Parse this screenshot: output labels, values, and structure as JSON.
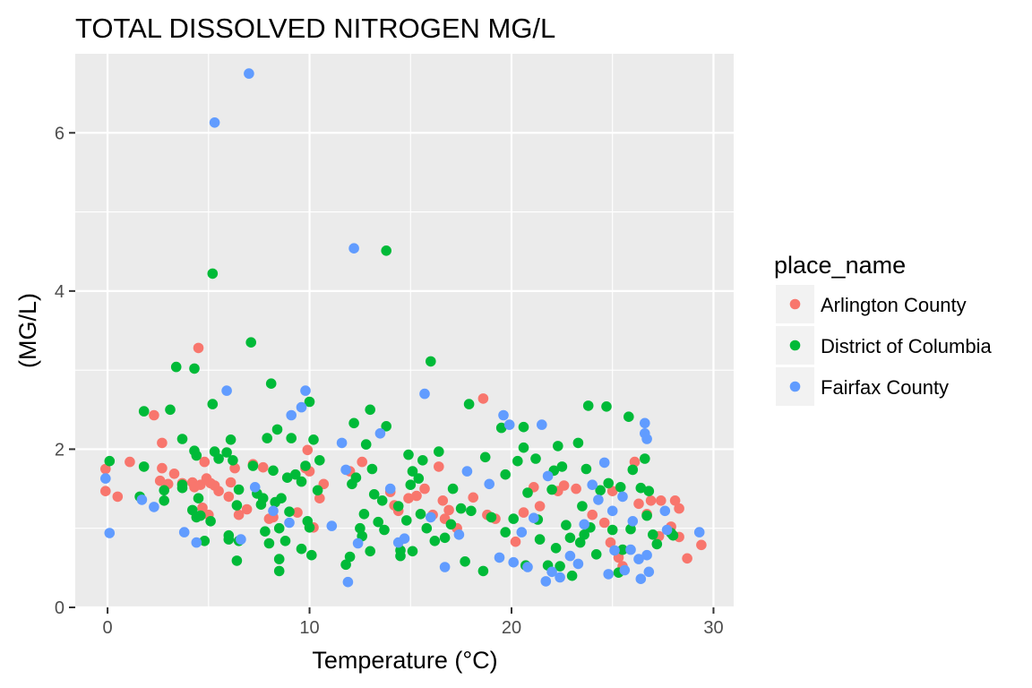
{
  "chart_data": {
    "type": "scatter",
    "title": "TOTAL DISSOLVED NITROGEN MG/L",
    "xlabel": "Temperature (°C)",
    "ylabel": "(MG/L)",
    "xlim": [
      -1.6,
      31.0
    ],
    "ylim": [
      0,
      7.0
    ],
    "x_ticks": [
      0,
      10,
      20,
      30
    ],
    "x_tick_labels": [
      "0",
      "10",
      "20",
      "30"
    ],
    "y_ticks": [
      0,
      2,
      4,
      6
    ],
    "y_tick_labels": [
      "0",
      "2",
      "4",
      "6"
    ],
    "grid": true,
    "legend": {
      "title": "place_name",
      "position": "right",
      "entries": [
        "Arlington County",
        "District of Columbia",
        "Fairfax County"
      ]
    },
    "series": [
      {
        "name": "Arlington County",
        "color": "#F8766D",
        "points": [
          [
            -0.1,
            1.75
          ],
          [
            -0.1,
            1.47
          ],
          [
            0.5,
            1.4
          ],
          [
            1.1,
            1.84
          ],
          [
            2.3,
            2.43
          ],
          [
            2.6,
            1.6
          ],
          [
            2.7,
            2.08
          ],
          [
            2.7,
            1.76
          ],
          [
            3.0,
            1.56
          ],
          [
            3.3,
            1.69
          ],
          [
            3.7,
            1.57
          ],
          [
            4.2,
            1.58
          ],
          [
            4.3,
            1.52
          ],
          [
            4.5,
            3.28
          ],
          [
            4.6,
            1.55
          ],
          [
            4.7,
            1.26
          ],
          [
            4.8,
            1.84
          ],
          [
            4.9,
            1.63
          ],
          [
            5.0,
            1.17
          ],
          [
            5.1,
            1.57
          ],
          [
            5.3,
            1.54
          ],
          [
            5.5,
            1.47
          ],
          [
            6.0,
            1.4
          ],
          [
            6.1,
            1.58
          ],
          [
            6.3,
            1.76
          ],
          [
            6.5,
            1.17
          ],
          [
            6.9,
            1.24
          ],
          [
            7.2,
            1.81
          ],
          [
            7.7,
            1.77
          ],
          [
            8.0,
            1.12
          ],
          [
            8.2,
            1.14
          ],
          [
            9.4,
            1.2
          ],
          [
            9.8,
            1.76
          ],
          [
            9.9,
            1.99
          ],
          [
            10.0,
            1.72
          ],
          [
            10.2,
            1.01
          ],
          [
            10.5,
            1.38
          ],
          [
            10.7,
            1.56
          ],
          [
            12.0,
            1.72
          ],
          [
            12.6,
            1.84
          ],
          [
            14.0,
            1.46
          ],
          [
            14.2,
            1.29
          ],
          [
            14.4,
            1.22
          ],
          [
            14.9,
            1.38
          ],
          [
            15.3,
            1.41
          ],
          [
            15.7,
            1.5
          ],
          [
            16.1,
            1.17
          ],
          [
            16.4,
            1.78
          ],
          [
            16.6,
            1.35
          ],
          [
            16.7,
            1.12
          ],
          [
            16.9,
            1.23
          ],
          [
            17.3,
            1.0
          ],
          [
            18.1,
            1.39
          ],
          [
            18.6,
            2.64
          ],
          [
            18.8,
            1.17
          ],
          [
            19.2,
            1.12
          ],
          [
            20.2,
            0.83
          ],
          [
            20.6,
            1.2
          ],
          [
            21.1,
            1.52
          ],
          [
            21.4,
            1.28
          ],
          [
            22.3,
            1.47
          ],
          [
            22.6,
            1.54
          ],
          [
            23.2,
            1.5
          ],
          [
            24.0,
            1.17
          ],
          [
            24.6,
            1.07
          ],
          [
            24.9,
            0.82
          ],
          [
            25.0,
            1.47
          ],
          [
            25.3,
            0.63
          ],
          [
            25.5,
            0.52
          ],
          [
            26.1,
            1.84
          ],
          [
            26.3,
            1.31
          ],
          [
            26.7,
            1.18
          ],
          [
            26.9,
            1.35
          ],
          [
            27.3,
            0.9
          ],
          [
            27.4,
            1.35
          ],
          [
            27.9,
            1.02
          ],
          [
            28.1,
            1.35
          ],
          [
            28.3,
            0.89
          ],
          [
            28.3,
            1.25
          ],
          [
            28.7,
            0.62
          ],
          [
            29.4,
            0.79
          ]
        ]
      },
      {
        "name": "District of Columbia",
        "color": "#00BA38",
        "points": [
          [
            0.1,
            1.85
          ],
          [
            1.6,
            1.4
          ],
          [
            1.8,
            2.48
          ],
          [
            1.8,
            1.78
          ],
          [
            2.8,
            1.48
          ],
          [
            2.8,
            1.35
          ],
          [
            3.1,
            2.5
          ],
          [
            3.4,
            3.04
          ],
          [
            3.7,
            1.55
          ],
          [
            3.7,
            2.13
          ],
          [
            3.7,
            1.51
          ],
          [
            4.2,
            1.23
          ],
          [
            4.3,
            3.02
          ],
          [
            4.3,
            1.98
          ],
          [
            4.4,
            1.14
          ],
          [
            4.4,
            1.92
          ],
          [
            4.5,
            1.38
          ],
          [
            4.6,
            1.16
          ],
          [
            4.8,
            0.84
          ],
          [
            5.1,
            1.09
          ],
          [
            5.2,
            4.22
          ],
          [
            5.2,
            2.57
          ],
          [
            5.3,
            1.97
          ],
          [
            5.5,
            1.88
          ],
          [
            5.9,
            1.96
          ],
          [
            6.0,
            0.91
          ],
          [
            6.0,
            0.86
          ],
          [
            6.1,
            2.12
          ],
          [
            6.2,
            1.86
          ],
          [
            6.4,
            0.59
          ],
          [
            6.4,
            1.29
          ],
          [
            6.5,
            1.49
          ],
          [
            6.5,
            0.84
          ],
          [
            7.1,
            3.35
          ],
          [
            7.2,
            1.79
          ],
          [
            7.4,
            1.44
          ],
          [
            7.6,
            1.3
          ],
          [
            7.7,
            1.38
          ],
          [
            7.8,
            0.96
          ],
          [
            7.9,
            2.14
          ],
          [
            8.0,
            0.81
          ],
          [
            8.1,
            2.83
          ],
          [
            8.2,
            1.73
          ],
          [
            8.3,
            1.33
          ],
          [
            8.4,
            2.25
          ],
          [
            8.5,
            0.61
          ],
          [
            8.5,
            1.0
          ],
          [
            8.5,
            0.46
          ],
          [
            8.6,
            1.38
          ],
          [
            8.8,
            0.84
          ],
          [
            8.9,
            1.64
          ],
          [
            9.0,
            1.21
          ],
          [
            9.1,
            2.14
          ],
          [
            9.3,
            1.68
          ],
          [
            9.6,
            1.59
          ],
          [
            9.6,
            0.74
          ],
          [
            9.8,
            1.79
          ],
          [
            9.9,
            1.09
          ],
          [
            10.0,
            1.01
          ],
          [
            10.0,
            2.6
          ],
          [
            10.1,
            0.66
          ],
          [
            10.2,
            2.12
          ],
          [
            10.4,
            1.48
          ],
          [
            10.5,
            1.86
          ],
          [
            11.8,
            0.54
          ],
          [
            12.0,
            0.64
          ],
          [
            12.1,
            1.56
          ],
          [
            12.2,
            2.33
          ],
          [
            12.3,
            1.64
          ],
          [
            12.5,
            1.0
          ],
          [
            12.6,
            0.9
          ],
          [
            12.7,
            1.18
          ],
          [
            12.8,
            2.06
          ],
          [
            13.0,
            2.5
          ],
          [
            13.0,
            0.71
          ],
          [
            13.1,
            1.75
          ],
          [
            13.2,
            1.43
          ],
          [
            13.4,
            1.08
          ],
          [
            13.6,
            1.35
          ],
          [
            13.7,
            0.98
          ],
          [
            13.8,
            2.29
          ],
          [
            13.8,
            4.51
          ],
          [
            14.4,
            1.28
          ],
          [
            14.5,
            0.72
          ],
          [
            14.5,
            0.65
          ],
          [
            14.8,
            1.1
          ],
          [
            14.9,
            1.93
          ],
          [
            15.0,
            1.55
          ],
          [
            15.1,
            1.72
          ],
          [
            15.1,
            0.71
          ],
          [
            15.4,
            1.63
          ],
          [
            15.5,
            1.18
          ],
          [
            15.6,
            1.86
          ],
          [
            15.8,
            1.0
          ],
          [
            16.0,
            3.11
          ],
          [
            16.2,
            0.84
          ],
          [
            16.4,
            1.97
          ],
          [
            16.7,
            0.88
          ],
          [
            17.0,
            1.05
          ],
          [
            17.1,
            1.5
          ],
          [
            17.5,
            1.25
          ],
          [
            17.7,
            0.58
          ],
          [
            17.9,
            2.57
          ],
          [
            18.0,
            1.22
          ],
          [
            18.6,
            0.46
          ],
          [
            18.7,
            1.9
          ],
          [
            19.0,
            1.14
          ],
          [
            19.5,
            2.27
          ],
          [
            19.7,
            0.95
          ],
          [
            19.7,
            1.68
          ],
          [
            20.1,
            1.12
          ],
          [
            20.3,
            1.85
          ],
          [
            20.6,
            2.28
          ],
          [
            20.6,
            2.02
          ],
          [
            20.7,
            0.53
          ],
          [
            20.8,
            1.45
          ],
          [
            21.2,
            1.88
          ],
          [
            21.3,
            1.11
          ],
          [
            21.4,
            0.86
          ],
          [
            21.8,
            0.53
          ],
          [
            22.0,
            1.49
          ],
          [
            22.1,
            1.73
          ],
          [
            22.2,
            0.75
          ],
          [
            22.3,
            2.04
          ],
          [
            22.4,
            0.52
          ],
          [
            22.5,
            1.78
          ],
          [
            22.7,
            1.04
          ],
          [
            22.9,
            0.88
          ],
          [
            23.0,
            0.4
          ],
          [
            23.3,
            2.08
          ],
          [
            23.4,
            0.82
          ],
          [
            23.5,
            1.28
          ],
          [
            23.6,
            0.92
          ],
          [
            23.7,
            1.75
          ],
          [
            23.8,
            2.55
          ],
          [
            23.9,
            1.01
          ],
          [
            24.2,
            0.67
          ],
          [
            24.4,
            1.48
          ],
          [
            24.7,
            2.54
          ],
          [
            24.8,
            1.57
          ],
          [
            25.0,
            0.98
          ],
          [
            25.3,
            0.44
          ],
          [
            25.4,
            1.52
          ],
          [
            25.5,
            0.73
          ],
          [
            25.8,
            2.41
          ],
          [
            25.9,
            0.99
          ],
          [
            26.0,
            1.74
          ],
          [
            26.4,
            1.51
          ],
          [
            26.6,
            1.88
          ],
          [
            26.7,
            1.16
          ],
          [
            26.8,
            1.47
          ],
          [
            27.0,
            0.92
          ],
          [
            27.2,
            0.8
          ],
          [
            27.9,
            0.94
          ],
          [
            28.0,
            0.91
          ]
        ]
      },
      {
        "name": "Fairfax County",
        "color": "#619CFF",
        "points": [
          [
            -0.1,
            1.63
          ],
          [
            0.1,
            0.94
          ],
          [
            1.7,
            1.36
          ],
          [
            2.3,
            1.27
          ],
          [
            3.8,
            0.95
          ],
          [
            4.4,
            0.82
          ],
          [
            5.3,
            6.13
          ],
          [
            5.9,
            2.74
          ],
          [
            6.6,
            0.86
          ],
          [
            7.0,
            6.75
          ],
          [
            7.3,
            1.52
          ],
          [
            8.2,
            1.22
          ],
          [
            9.0,
            1.07
          ],
          [
            9.1,
            2.43
          ],
          [
            9.6,
            2.53
          ],
          [
            9.8,
            2.74
          ],
          [
            11.1,
            1.03
          ],
          [
            11.6,
            2.08
          ],
          [
            11.8,
            1.74
          ],
          [
            11.9,
            0.32
          ],
          [
            12.2,
            4.54
          ],
          [
            12.4,
            0.81
          ],
          [
            13.5,
            2.2
          ],
          [
            14.0,
            1.5
          ],
          [
            14.4,
            0.82
          ],
          [
            14.7,
            0.87
          ],
          [
            15.7,
            2.7
          ],
          [
            16.0,
            1.14
          ],
          [
            16.7,
            0.51
          ],
          [
            17.4,
            0.92
          ],
          [
            17.8,
            1.72
          ],
          [
            18.9,
            1.56
          ],
          [
            19.4,
            0.63
          ],
          [
            19.6,
            2.43
          ],
          [
            19.9,
            2.31
          ],
          [
            20.1,
            0.57
          ],
          [
            20.5,
            0.95
          ],
          [
            20.8,
            0.51
          ],
          [
            21.1,
            1.13
          ],
          [
            21.5,
            2.31
          ],
          [
            21.7,
            0.33
          ],
          [
            21.8,
            1.66
          ],
          [
            22.0,
            0.45
          ],
          [
            22.4,
            0.38
          ],
          [
            22.9,
            0.65
          ],
          [
            23.3,
            0.55
          ],
          [
            23.6,
            1.05
          ],
          [
            24.0,
            1.55
          ],
          [
            24.3,
            1.36
          ],
          [
            24.6,
            1.83
          ],
          [
            24.8,
            0.42
          ],
          [
            25.0,
            1.22
          ],
          [
            25.1,
            0.72
          ],
          [
            25.5,
            1.4
          ],
          [
            25.6,
            0.47
          ],
          [
            25.9,
            0.73
          ],
          [
            26.0,
            1.09
          ],
          [
            26.3,
            0.61
          ],
          [
            26.4,
            0.36
          ],
          [
            26.6,
            2.33
          ],
          [
            26.6,
            2.2
          ],
          [
            26.7,
            2.13
          ],
          [
            26.7,
            0.66
          ],
          [
            26.8,
            0.45
          ],
          [
            27.6,
            1.22
          ],
          [
            27.7,
            0.98
          ],
          [
            29.3,
            0.95
          ]
        ]
      }
    ]
  }
}
